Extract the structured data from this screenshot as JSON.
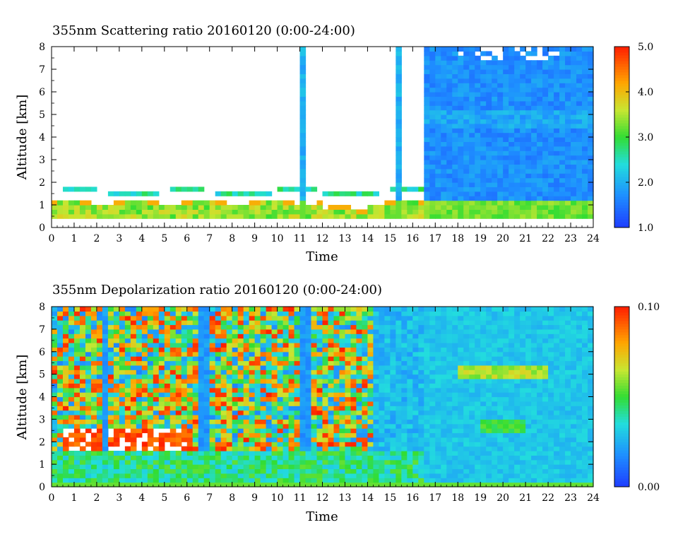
{
  "chart_data": [
    {
      "type": "heatmap",
      "title": "355nm Scattering ratio  20160120 (0:00-24:00)",
      "xlabel": "Time",
      "ylabel": "Altitude [km]",
      "xlim": [
        0,
        24
      ],
      "ylim": [
        0,
        8
      ],
      "xticks": [
        "0",
        "1",
        "2",
        "3",
        "4",
        "5",
        "6",
        "7",
        "8",
        "9",
        "10",
        "11",
        "12",
        "13",
        "14",
        "15",
        "16",
        "17",
        "18",
        "19",
        "20",
        "21",
        "22",
        "23",
        "24"
      ],
      "yticks": [
        "0",
        "1",
        "2",
        "3",
        "4",
        "5",
        "6",
        "7",
        "8"
      ],
      "colorbar": {
        "min": 1.0,
        "max": 5.0,
        "tick_values": [
          1.0,
          2.0,
          3.0,
          4.0,
          5.0
        ],
        "tick_labels": [
          "1.0",
          "2.0",
          "3.0",
          "4.0",
          "5.0"
        ]
      },
      "features": [
        {
          "kind": "boundary_layer",
          "t0": 0,
          "t1": 24,
          "bottom_km": 0.45,
          "top_km": 1.2,
          "value": 3.2
        },
        {
          "kind": "aerosol_top_line",
          "t0": 0,
          "t1": 16.5,
          "top_km": 1.8
        },
        {
          "kind": "cloud_column",
          "t0": 11.1,
          "t1": 11.3,
          "bottom_km": 1.5,
          "top_km": 8,
          "value": 1.8
        },
        {
          "kind": "cloud_column",
          "t0": 15.2,
          "t1": 15.5,
          "bottom_km": 1.5,
          "top_km": 8,
          "value": 1.8
        },
        {
          "kind": "high_cloud",
          "t0": 16.5,
          "t1": 24,
          "bottom_km": 1.3,
          "top_km": 8,
          "value": 1.5
        }
      ]
    },
    {
      "type": "heatmap",
      "title": "355nm Depolarization ratio  20160120 (0:00-24:00)",
      "xlabel": "Time",
      "ylabel": "Altitude [km]",
      "xlim": [
        0,
        24
      ],
      "ylim": [
        0,
        8
      ],
      "xticks": [
        "0",
        "1",
        "2",
        "3",
        "4",
        "5",
        "6",
        "7",
        "8",
        "9",
        "10",
        "11",
        "12",
        "13",
        "14",
        "15",
        "16",
        "17",
        "18",
        "19",
        "20",
        "21",
        "22",
        "23",
        "24"
      ],
      "yticks": [
        "0",
        "1",
        "2",
        "3",
        "4",
        "5",
        "6",
        "7",
        "8"
      ],
      "colorbar": {
        "min": 0.0,
        "max": 0.1,
        "tick_values": [
          0.0,
          0.1
        ],
        "tick_labels": [
          "0.00",
          "0.10"
        ]
      },
      "features": [
        {
          "kind": "noisy_region",
          "t0": 0,
          "t1": 14.3,
          "bottom_km": 1.8,
          "top_km": 8,
          "value": 0.06
        },
        {
          "kind": "dust_layer",
          "t0": 0.5,
          "t1": 6.3,
          "bottom_km": 1.8,
          "top_km": 2.7,
          "value": 0.1
        },
        {
          "kind": "cirrus",
          "t0": 18,
          "t1": 22,
          "bottom_km": 4.8,
          "top_km": 5.4,
          "value": 0.07
        },
        {
          "kind": "cirrus",
          "t0": 19,
          "t1": 21,
          "bottom_km": 2.4,
          "top_km": 3.1,
          "value": 0.04
        }
      ]
    }
  ]
}
